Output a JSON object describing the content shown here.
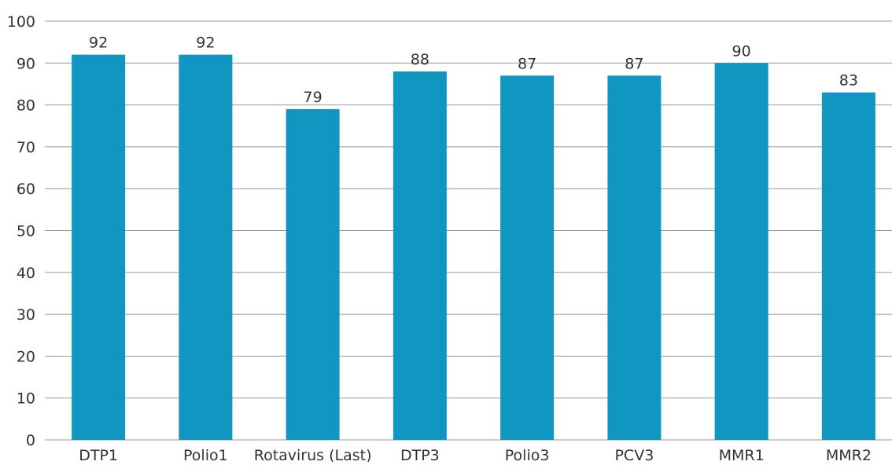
{
  "chart_data": {
    "type": "bar",
    "categories": [
      "DTP1",
      "Polio1",
      "Rotavirus (Last)",
      "DTP3",
      "Polio3",
      "PCV3",
      "MMR1",
      "MMR2"
    ],
    "values": [
      92,
      92,
      79,
      88,
      87,
      87,
      90,
      83
    ],
    "data_labels": [
      "92",
      "92",
      "79",
      "88",
      "87",
      "87",
      "90",
      "83"
    ],
    "ylim": [
      0,
      100
    ],
    "yticks": [
      0,
      10,
      20,
      30,
      40,
      50,
      60,
      70,
      80,
      90,
      100
    ],
    "ytick_labels": [
      "0",
      "10",
      "20",
      "30",
      "40",
      "50",
      "60",
      "70",
      "80",
      "90",
      "100"
    ],
    "grid": true,
    "legend": "none",
    "colors": {
      "bar": "#1096c0",
      "grid": "#9a9a9a",
      "text": "#333333"
    }
  }
}
